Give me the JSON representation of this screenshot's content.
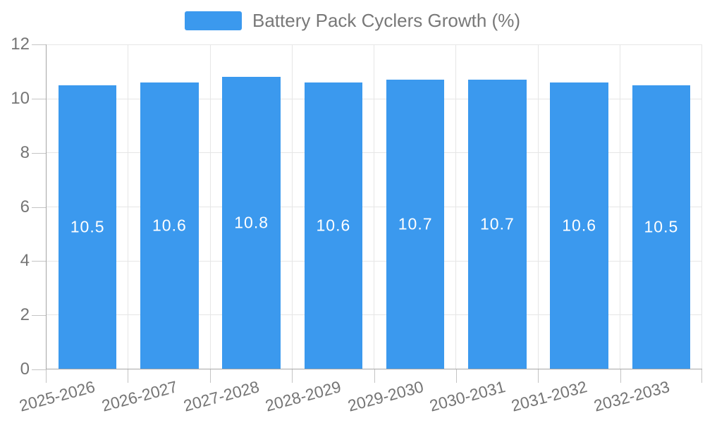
{
  "legend": {
    "label": "Battery Pack Cyclers Growth (%)"
  },
  "chart_data": {
    "type": "bar",
    "title": "Battery Pack Cyclers Growth (%)",
    "categories": [
      "2025-2026",
      "2026-2027",
      "2027-2028",
      "2028-2029",
      "2029-2030",
      "2030-2031",
      "2031-2032",
      "2032-2033"
    ],
    "values": [
      10.5,
      10.6,
      10.8,
      10.6,
      10.7,
      10.7,
      10.6,
      10.5
    ],
    "value_labels": [
      "10.5",
      "10.6",
      "10.8",
      "10.6",
      "10.7",
      "10.7",
      "10.6",
      "10.5"
    ],
    "xlabel": "",
    "ylabel": "",
    "ylim": [
      0,
      12
    ],
    "yticks": [
      0,
      2,
      4,
      6,
      8,
      10,
      12
    ],
    "grid": true,
    "legend_position": "top-center",
    "x_label_rotation_deg": -15
  },
  "colors": {
    "bar": "#3B99EE",
    "grid": "#e6e6e6",
    "axis": "#a6a6a6",
    "tick": "#c4c4c4",
    "text": "#757575",
    "legend_text": "#787878",
    "value_label": "#ffffff"
  }
}
